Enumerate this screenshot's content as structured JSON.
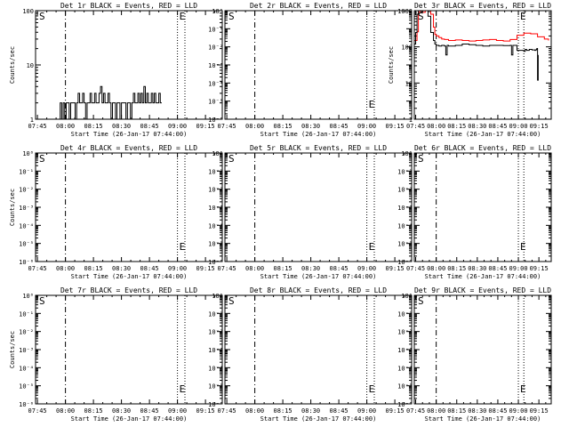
{
  "figure": {
    "common": {
      "xlabel": "Start Time (26-Jan-17 07:44:00)",
      "ylabel": "Counts/sec",
      "x_tick_labels": [
        "07:45",
        "08:00",
        "08:15",
        "08:30",
        "08:45",
        "09:00",
        "09:15"
      ],
      "x_tick_minutes": [
        1,
        16,
        31,
        46,
        61,
        76,
        91
      ],
      "x_range_minutes": [
        0,
        100
      ],
      "dashed_marker_minute": 16,
      "dotted_marker_minutes": [
        76,
        80
      ],
      "letter_s": "S",
      "letter_e": "E",
      "colors": {
        "events": "#000000",
        "lld": "#ff0000",
        "frame": "#000000"
      }
    }
  },
  "chart_data": [
    {
      "type": "line",
      "title": "Det 1r BLACK = Events, RED = LLD",
      "xlabel": "Start Time (26-Jan-17 07:44:00)",
      "ylabel": "Counts/sec",
      "yscale": "log",
      "ylim": [
        1,
        100
      ],
      "y_ticks": [
        1,
        10,
        100
      ],
      "y_tick_labels": [
        "1",
        "10",
        "100"
      ],
      "series": [
        {
          "name": "Events",
          "color": "#000000",
          "x": [
            12.2,
            13.2,
            14.0,
            14.8,
            15.6,
            16.4,
            17.2,
            18.0,
            18.8,
            19.6,
            20.4,
            21.2,
            22.0,
            22.8,
            23.6,
            24.4,
            25.2,
            26.0,
            26.8,
            27.6,
            28.4,
            29.2,
            30.0,
            30.8,
            31.6,
            32.4,
            33.2,
            34.0,
            34.8,
            35.6,
            36.4,
            37.2,
            38.0,
            38.8,
            39.6,
            40.4,
            41.2,
            42.0,
            42.8,
            43.6,
            44.4,
            45.2,
            46.0,
            46.8,
            47.6,
            48.4,
            49.2,
            50.0,
            50.8,
            51.6,
            52.4,
            53.2,
            54.0,
            54.8,
            55.6,
            56.4,
            57.2,
            58.0,
            58.8,
            59.6,
            60.4,
            61.2,
            62.0,
            62.8,
            63.6,
            64.4,
            65.2,
            66.0,
            66.8,
            67.6
          ],
          "values": [
            1,
            2,
            1,
            2,
            1,
            2,
            2,
            1,
            2,
            2,
            2,
            1,
            2,
            3,
            2,
            2,
            3,
            2,
            1,
            2,
            2,
            3,
            2,
            2,
            3,
            2,
            2,
            3,
            4,
            2,
            3,
            2,
            2,
            3,
            2,
            1,
            2,
            2,
            1,
            2,
            2,
            1,
            2,
            2,
            2,
            1,
            2,
            2,
            1,
            2,
            3,
            2,
            2,
            3,
            2,
            3,
            2,
            4,
            2,
            3,
            2,
            2,
            3,
            2,
            3,
            2,
            2,
            3,
            2,
            2
          ]
        }
      ]
    },
    {
      "type": "line",
      "title": "Det 2r BLACK = Events, RED = LLD",
      "xlabel": "Start Time (26-Jan-17 07:44:00)",
      "ylabel": "Counts/sec",
      "yscale": "log",
      "ylim": [
        1e-06,
        1
      ],
      "y_ticks": [
        1e-06,
        1e-05,
        0.0001,
        0.001,
        0.01,
        0.1,
        1
      ],
      "y_tick_labels": [
        "10⁻⁶",
        "10⁻⁵",
        "10⁻⁴",
        "10⁻³",
        "10⁻²",
        "10⁻¹",
        "10⁰"
      ],
      "series": []
    },
    {
      "type": "line",
      "title": "Det 3r BLACK = Events, RED = LLD",
      "xlabel": "Start Time (26-Jan-17 07:44:00)",
      "ylabel": "Counts/sec",
      "yscale": "log",
      "ylim": [
        1,
        1000
      ],
      "y_ticks": [
        1,
        10,
        100,
        1000
      ],
      "y_tick_labels": [
        "1",
        "10",
        "100",
        "1000"
      ],
      "series": [
        {
          "name": "LLD",
          "color": "#ff0000",
          "x": [
            0,
            2,
            3,
            4,
            5,
            6,
            8,
            10,
            12,
            14,
            15,
            16,
            18,
            20,
            22,
            25,
            30,
            35,
            40,
            45,
            50,
            55,
            60,
            65,
            70,
            75,
            80,
            85,
            90,
            95,
            98
          ],
          "values": [
            150,
            260,
            900,
            1000,
            1000,
            900,
            1000,
            1000,
            800,
            350,
            220,
            200,
            180,
            165,
            160,
            150,
            155,
            150,
            145,
            150,
            155,
            160,
            150,
            145,
            160,
            210,
            240,
            230,
            190,
            165,
            150
          ]
        },
        {
          "name": "Events",
          "color": "#000000",
          "x": [
            0,
            1,
            2,
            3,
            4,
            5,
            6,
            8,
            10,
            12,
            14,
            15,
            16,
            18,
            20,
            22,
            23,
            24,
            25,
            30,
            35,
            40,
            45,
            50,
            55,
            60,
            65,
            70,
            71,
            72,
            75,
            80,
            81,
            82,
            84,
            86,
            88,
            89,
            89.5,
            90,
            90.5
          ],
          "values": [
            120,
            250,
            800,
            1000,
            1000,
            900,
            1000,
            1000,
            700,
            250,
            150,
            120,
            110,
            105,
            110,
            105,
            60,
            110,
            105,
            110,
            120,
            115,
            110,
            105,
            110,
            110,
            108,
            110,
            60,
            110,
            80,
            75,
            85,
            80,
            85,
            82,
            80,
            85,
            90,
            12,
            60
          ]
        }
      ]
    },
    {
      "type": "line",
      "title": "Det 4r BLACK = Events, RED = LLD",
      "xlabel": "Start Time (26-Jan-17 07:44:00)",
      "ylabel": "Counts/sec",
      "yscale": "log",
      "ylim": [
        1e-06,
        1
      ],
      "y_ticks": [
        1e-06,
        1e-05,
        0.0001,
        0.001,
        0.01,
        0.1,
        1
      ],
      "y_tick_labels": [
        "10⁻⁶",
        "10⁻⁵",
        "10⁻⁴",
        "10⁻³",
        "10⁻²",
        "10⁻¹",
        "10⁰"
      ],
      "series": []
    },
    {
      "type": "line",
      "title": "Det 5r BLACK = Events, RED = LLD",
      "xlabel": "Start Time (26-Jan-17 07:44:00)",
      "ylabel": "Counts/sec",
      "yscale": "log",
      "ylim": [
        1e-06,
        1
      ],
      "y_ticks": [
        1e-06,
        1e-05,
        0.0001,
        0.001,
        0.01,
        0.1,
        1
      ],
      "y_tick_labels": [
        "10⁻⁶",
        "10⁻⁵",
        "10⁻⁴",
        "10⁻³",
        "10⁻²",
        "10⁻¹",
        "10⁰"
      ],
      "series": []
    },
    {
      "type": "line",
      "title": "Det 6r BLACK = Events, RED = LLD",
      "xlabel": "Start Time (26-Jan-17 07:44:00)",
      "ylabel": "Counts/sec",
      "yscale": "log",
      "ylim": [
        1e-06,
        1
      ],
      "y_ticks": [
        1e-06,
        1e-05,
        0.0001,
        0.001,
        0.01,
        0.1,
        1
      ],
      "y_tick_labels": [
        "10⁻⁶",
        "10⁻⁵",
        "10⁻⁴",
        "10⁻³",
        "10⁻²",
        "10⁻¹",
        "10⁰"
      ],
      "series": []
    },
    {
      "type": "line",
      "title": "Det 7r BLACK = Events, RED = LLD",
      "xlabel": "Start Time (26-Jan-17 07:44:00)",
      "ylabel": "Counts/sec",
      "yscale": "log",
      "ylim": [
        1e-06,
        1
      ],
      "y_ticks": [
        1e-06,
        1e-05,
        0.0001,
        0.001,
        0.01,
        0.1,
        1
      ],
      "y_tick_labels": [
        "10⁻⁶",
        "10⁻⁵",
        "10⁻⁴",
        "10⁻³",
        "10⁻²",
        "10⁻¹",
        "10⁰"
      ],
      "series": []
    },
    {
      "type": "line",
      "title": "Det 8r BLACK = Events, RED = LLD",
      "xlabel": "Start Time (26-Jan-17 07:44:00)",
      "ylabel": "Counts/sec",
      "yscale": "log",
      "ylim": [
        1e-06,
        1
      ],
      "y_ticks": [
        1e-06,
        1e-05,
        0.0001,
        0.001,
        0.01,
        0.1,
        1
      ],
      "y_tick_labels": [
        "10⁻⁶",
        "10⁻⁵",
        "10⁻⁴",
        "10⁻³",
        "10⁻²",
        "10⁻¹",
        "10⁰"
      ],
      "series": []
    },
    {
      "type": "line",
      "title": "Det 9r BLACK = Events, RED = LLD",
      "xlabel": "Start Time (26-Jan-17 07:44:00)",
      "ylabel": "Counts/sec",
      "yscale": "log",
      "ylim": [
        1e-06,
        1
      ],
      "y_ticks": [
        1e-06,
        1e-05,
        0.0001,
        0.001,
        0.01,
        0.1,
        1
      ],
      "y_tick_labels": [
        "10⁻⁶",
        "10⁻⁵",
        "10⁻⁴",
        "10⁻³",
        "10⁻²",
        "10⁻¹",
        "10⁰"
      ],
      "series": []
    }
  ]
}
